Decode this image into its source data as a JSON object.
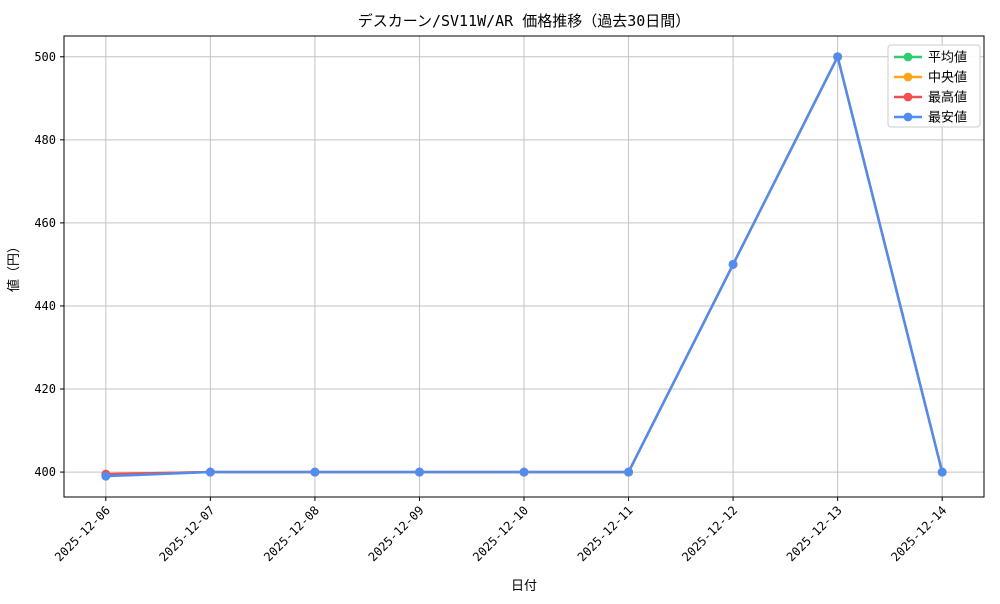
{
  "figure": {
    "background": "#ffffff",
    "spine_color": "#000000",
    "grid_color": "#c3c3c3"
  },
  "chart_data": {
    "type": "line",
    "title": "デスカーン/SV11W/AR 価格推移（過去30日間）",
    "xlabel": "日付",
    "ylabel": "値（円）",
    "categories": [
      "2025-12-06",
      "2025-12-07",
      "2025-12-08",
      "2025-12-09",
      "2025-12-10",
      "2025-12-11",
      "2025-12-12",
      "2025-12-13",
      "2025-12-14"
    ],
    "series": [
      {
        "name": "平均値",
        "color": "#2ecc71",
        "values": [
          399.5,
          400,
          400,
          400,
          400,
          400,
          450,
          500,
          400
        ]
      },
      {
        "name": "中央値",
        "color": "#ffa418",
        "values": [
          399.5,
          400,
          400,
          400,
          400,
          400,
          450,
          500,
          400
        ]
      },
      {
        "name": "最高値",
        "color": "#f05050",
        "values": [
          399.5,
          400,
          400,
          400,
          400,
          400,
          450,
          500,
          400
        ]
      },
      {
        "name": "最安値",
        "color": "#4f8df2",
        "values": [
          399,
          400,
          400,
          400,
          400,
          400,
          450,
          500,
          400
        ]
      }
    ],
    "yticks": [
      400,
      420,
      440,
      460,
      480,
      500
    ],
    "ylim": [
      394,
      505
    ],
    "grid": true,
    "legend_position": "upper right",
    "legend_border_color": "#cccccc",
    "marker": "circle",
    "x_tick_rotation_deg": 45
  }
}
